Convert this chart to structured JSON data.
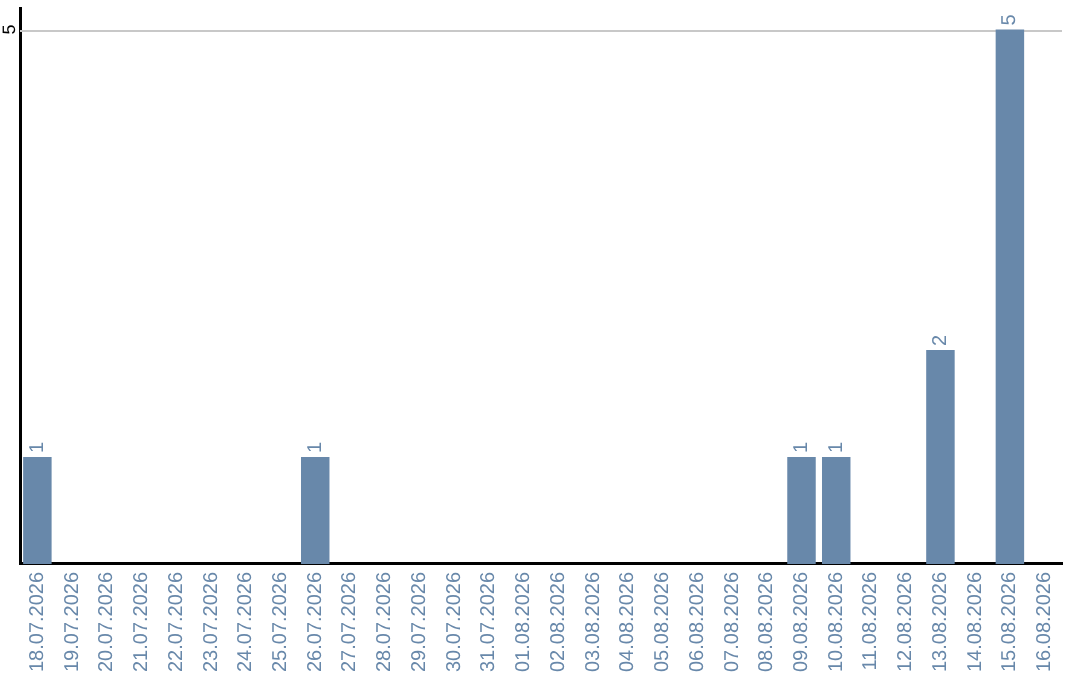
{
  "chart_data": {
    "type": "bar",
    "categories": [
      "18.07.2026",
      "19.07.2026",
      "20.07.2026",
      "21.07.2026",
      "22.07.2026",
      "23.07.2026",
      "24.07.2026",
      "25.07.2026",
      "26.07.2026",
      "27.07.2026",
      "28.07.2026",
      "29.07.2026",
      "30.07.2026",
      "31.07.2026",
      "01.08.2026",
      "02.08.2026",
      "03.08.2026",
      "04.08.2026",
      "05.08.2026",
      "06.08.2026",
      "07.08.2026",
      "08.08.2026",
      "09.08.2026",
      "10.08.2026",
      "11.08.2026",
      "12.08.2026",
      "13.08.2026",
      "14.08.2026",
      "15.08.2026",
      "16.08.2026"
    ],
    "values": [
      1,
      null,
      null,
      null,
      null,
      null,
      null,
      null,
      1,
      null,
      null,
      null,
      null,
      null,
      null,
      null,
      null,
      null,
      null,
      null,
      null,
      null,
      1,
      1,
      null,
      null,
      2,
      null,
      5,
      null
    ],
    "color": "#6888aa",
    "ylim": [
      0,
      5.2
    ],
    "yticks": [
      5
    ],
    "grid": "y",
    "data_labels": true,
    "legend": false
  }
}
